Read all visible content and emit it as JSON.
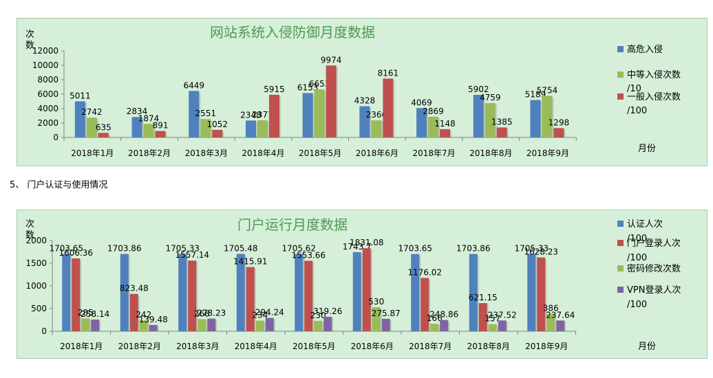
{
  "section_heading": "5、 门户认证与使用情况",
  "chart_data": [
    {
      "type": "bar",
      "title": "网站系统入侵防御月度数据",
      "ylabel": "次数",
      "xlabel": "月份",
      "ylim": [
        0,
        12000
      ],
      "yticks": [
        0,
        2000,
        4000,
        6000,
        8000,
        10000,
        12000
      ],
      "grid": false,
      "legend_position": "right",
      "categories": [
        "2018年1月",
        "2018年2月",
        "2018年3月",
        "2018年4月",
        "2018年5月",
        "2018年6月",
        "2018年7月",
        "2018年8月",
        "2018年9月"
      ],
      "series": [
        {
          "name": "高危入侵",
          "color": "#4f81bd",
          "values": [
            5011,
            2834,
            6449,
            2348,
            6153,
            4328,
            4069,
            5902,
            5189
          ]
        },
        {
          "name": "中等入侵次数/10",
          "color": "#9bbb59",
          "values": [
            2742,
            1874,
            2551,
            2377,
            6653,
            2366,
            2869,
            4759,
            5754
          ]
        },
        {
          "name": "一般入侵次数/100",
          "color": "#c0504d",
          "values": [
            635,
            891,
            1052,
            5915,
            9974,
            8161,
            1148,
            1385,
            1298
          ]
        }
      ]
    },
    {
      "type": "bar",
      "title": "门户运行月度数据",
      "ylabel": "次数",
      "xlabel": "月份",
      "ylim": [
        0,
        2000
      ],
      "yticks": [
        0,
        500,
        1000,
        1500,
        2000
      ],
      "grid": false,
      "legend_position": "right",
      "categories": [
        "2018年1月",
        "2018年2月",
        "2018年3月",
        "2018年4月",
        "2018年5月",
        "2018年6月",
        "2018年7月",
        "2018年8月",
        "2018年9月"
      ],
      "series": [
        {
          "name": "认证人次/100",
          "color": "#4f81bd",
          "values": [
            1703.65,
            1703.86,
            1705.33,
            1705.48,
            1705.62,
            1743.7,
            1703.65,
            1703.86,
            1705.33
          ]
        },
        {
          "name": "门户登录人次/100",
          "color": "#c0504d",
          "values": [
            1606.36,
            823.48,
            1557.14,
            1415.91,
            1553.66,
            1831.08,
            1176.02,
            621.15,
            1628.23
          ]
        },
        {
          "name": "密码修改次数",
          "color": "#9bbb59",
          "values": [
            285,
            242,
            268,
            234,
            230,
            530,
            166,
            157,
            386
          ]
        },
        {
          "name": "VPN登录人次/100",
          "color": "#8064a2",
          "values": [
            258.14,
            139.48,
            278.23,
            294.24,
            319.26,
            275.87,
            248.86,
            237.52,
            237.64
          ]
        }
      ]
    }
  ]
}
